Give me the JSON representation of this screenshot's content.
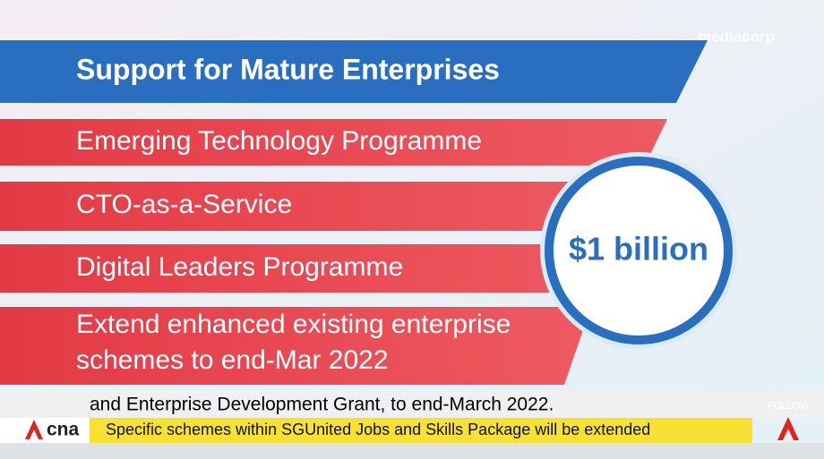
{
  "header": {
    "title": "Support for Mature Enterprises",
    "broadcaster": "mediacorp"
  },
  "items": [
    "Emerging Technology Programme",
    "CTO-as-a-Service",
    "Digital Leaders Programme"
  ],
  "extension": {
    "line1": "Extend enhanced existing enterprise",
    "line2": "schemes to end-Mar 2022"
  },
  "badge": {
    "amount": "$1 billion"
  },
  "caption": "and Enterprise Development Grant, to end-March 2022.",
  "ticker": {
    "logo": "cna",
    "text": "Specific schemes within SGUnited Jobs and Skills Package will be extended",
    "follow": "FOLLOW"
  }
}
